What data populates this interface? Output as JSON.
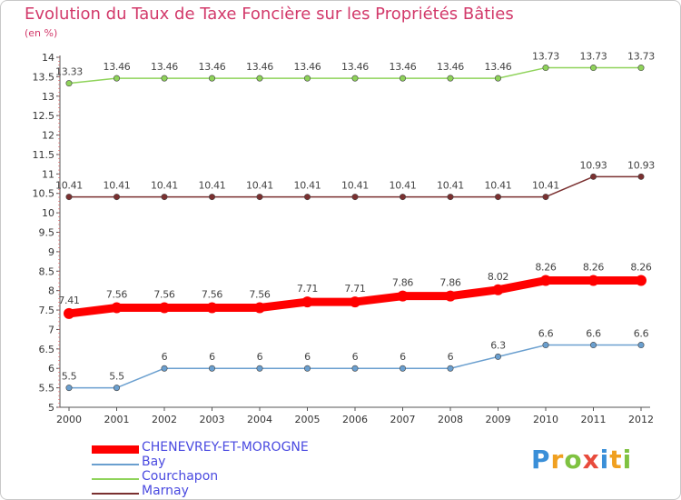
{
  "header": {
    "title": "Evolution du Taux de Taxe Foncière sur les Propriétés Bâties",
    "unit": "(en %)"
  },
  "brand": {
    "letters": [
      "P",
      "r",
      "o",
      "x",
      "i",
      "t",
      "i"
    ],
    "colors": [
      "#3a8fd8",
      "#f0a020",
      "#7fc241",
      "#e84b3c",
      "#3a8fd8",
      "#f0a020",
      "#7fc241"
    ]
  },
  "chart_data": {
    "type": "line",
    "title": "Evolution du Taux de Taxe Foncière sur les Propriétés Bâties",
    "ylabel": "(en %)",
    "xlabel": "",
    "ylim": [
      5,
      14
    ],
    "yticks": [
      "5",
      "5.5",
      "6",
      "6.5",
      "7",
      "7.5",
      "8",
      "8.5",
      "9",
      "9.5",
      "10",
      "10.5",
      "11",
      "11.5",
      "12",
      "12.5",
      "13",
      "13.5",
      "14"
    ],
    "x": [
      "2000",
      "2001",
      "2002",
      "2003",
      "2004",
      "2005",
      "2006",
      "2007",
      "2008",
      "2009",
      "2010",
      "2011",
      "2012"
    ],
    "grid": false,
    "legend_position": "bottom-left",
    "series": [
      {
        "name": "CHENEVREY-ET-MOROGNE",
        "color": "#ff0000",
        "highlight": true,
        "values": [
          7.41,
          7.56,
          7.56,
          7.56,
          7.56,
          7.71,
          7.71,
          7.86,
          7.86,
          8.02,
          8.26,
          8.26,
          8.26
        ],
        "labels": [
          "7.41",
          "7.56",
          "7.56",
          "7.56",
          "7.56",
          "7.71",
          "7.71",
          "7.86",
          "7.86",
          "8.02",
          "8.26",
          "8.26",
          "8.26"
        ]
      },
      {
        "name": "Bay",
        "color": "#6a9fcf",
        "highlight": false,
        "values": [
          5.5,
          5.5,
          6,
          6,
          6,
          6,
          6,
          6,
          6,
          6.3,
          6.6,
          6.6,
          6.6
        ],
        "labels": [
          "5.5",
          "5.5",
          "6",
          "6",
          "6",
          "6",
          "6",
          "6",
          "6",
          "6.3",
          "6.6",
          "6.6",
          "6.6"
        ]
      },
      {
        "name": "Courchapon",
        "color": "#8fd35a",
        "highlight": false,
        "values": [
          13.33,
          13.46,
          13.46,
          13.46,
          13.46,
          13.46,
          13.46,
          13.46,
          13.46,
          13.46,
          13.73,
          13.73,
          13.73
        ],
        "labels": [
          "13.33",
          "13.46",
          "13.46",
          "13.46",
          "13.46",
          "13.46",
          "13.46",
          "13.46",
          "13.46",
          "13.46",
          "13.73",
          "13.73",
          "13.73"
        ]
      },
      {
        "name": "Marnay",
        "color": "#7a3030",
        "highlight": false,
        "values": [
          10.41,
          10.41,
          10.41,
          10.41,
          10.41,
          10.41,
          10.41,
          10.41,
          10.41,
          10.41,
          10.41,
          10.93,
          10.93
        ],
        "labels": [
          "10.41",
          "10.41",
          "10.41",
          "10.41",
          "10.41",
          "10.41",
          "10.41",
          "10.41",
          "10.41",
          "10.41",
          "10.41",
          "10.93",
          "10.93"
        ]
      }
    ]
  }
}
